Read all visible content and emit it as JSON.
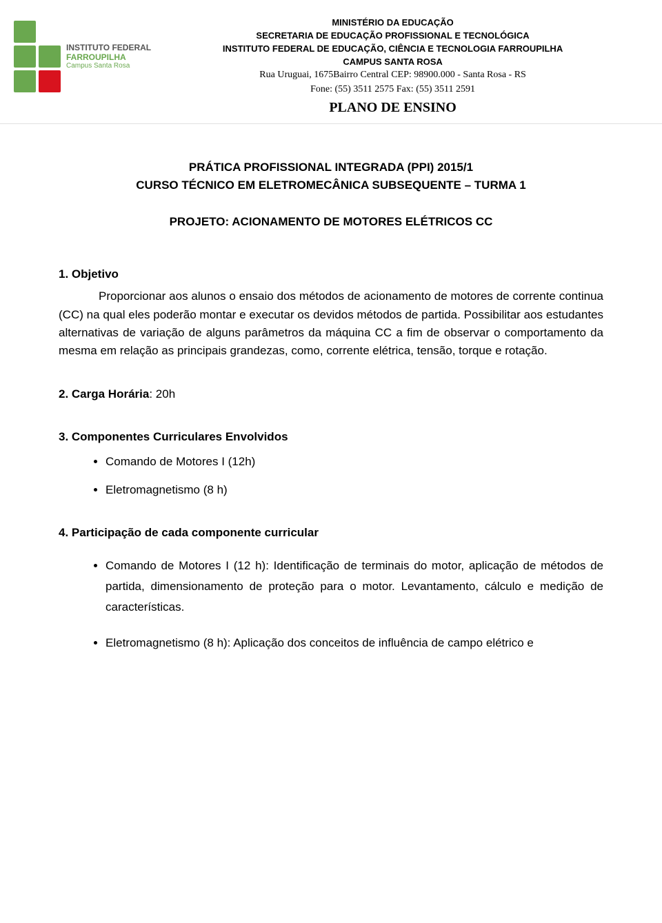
{
  "logo": {
    "square_colors": [
      "#6aa84f",
      "#ffffff",
      "#6aa84f",
      "#6aa84f",
      "#6aa84f",
      "#d8131e"
    ],
    "line1": "INSTITUTO FEDERAL",
    "line2": "FARROUPILHA",
    "line3": "Campus Santa Rosa"
  },
  "header": {
    "l1": "MINISTÉRIO DA EDUCAÇÃO",
    "l2": "SECRETARIA DE EDUCAÇÃO PROFISSIONAL E TECNOLÓGICA",
    "l3": "INSTITUTO FEDERAL DE EDUCAÇÃO, CIÊNCIA E TECNOLOGIA FARROUPILHA",
    "l4": "CAMPUS SANTA ROSA",
    "l5": "Rua Uruguai, 1675Bairro Central   CEP: 98900.000   - Santa Rosa - RS",
    "l6": "Fone: (55) 3511 2575     Fax: (55) 3511 2591",
    "plano": "PLANO DE ENSINO"
  },
  "title": {
    "line1": "PRÁTICA PROFISSIONAL INTEGRADA (PPI) 2015/1",
    "line2": "CURSO TÉCNICO EM ELETROMECÂNICA SUBSEQUENTE – TURMA 1"
  },
  "project": "PROJETO: ACIONAMENTO DE MOTORES ELÉTRICOS CC",
  "sec1": {
    "heading": "1. Objetivo",
    "body": "Proporcionar aos alunos o ensaio dos métodos de acionamento de motores de corrente continua (CC) na qual eles poderão montar e executar os devidos métodos de partida. Possibilitar aos estudantes alternativas de variação de alguns parâmetros da máquina CC a fim de observar o comportamento da mesma em relação as principais grandezas, como, corrente elétrica, tensão, torque e rotação."
  },
  "sec2": {
    "label": "2. Carga Horária",
    "value": ": 20h"
  },
  "sec3": {
    "heading": "3. Componentes Curriculares Envolvidos",
    "items": [
      "Comando de Motores I (12h)",
      "Eletromagnetismo (8 h)"
    ]
  },
  "sec4": {
    "heading": "4. Participação de cada componente curricular",
    "items": [
      "Comando de Motores I (12 h): Identificação de terminais do motor, aplicação de métodos de partida, dimensionamento de proteção para o motor. Levantamento, cálculo e medição de características.",
      "Eletromagnetismo (8 h): Aplicação dos conceitos de influência de campo elétrico e"
    ]
  }
}
